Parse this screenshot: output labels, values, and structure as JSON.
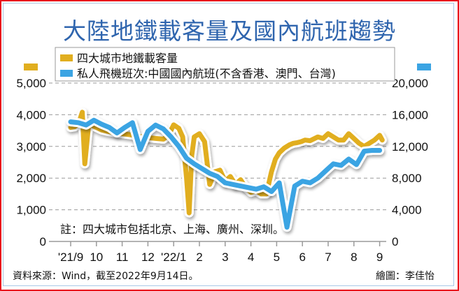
{
  "title": "大陸地鐵載客量及國內航班趨勢",
  "legend": [
    {
      "label": "四大城市地鐵載客量",
      "color": "#e1ae1f"
    },
    {
      "label": "私人飛機班次:中國國內航班(不含香港、澳門、台灣)",
      "color": "#3ba4e3"
    }
  ],
  "note": "註：四大城市包括北京、上海、廣州、深圳。",
  "source": "資料來源：Wind，截至2022年9月14日。",
  "credit": "繪圖：李佳怡",
  "chart_data": {
    "type": "line",
    "title": "大陸地鐵載客量及國內航班趨勢",
    "x_ticks": [
      "'21/9",
      "10",
      "11",
      "12",
      "'22/1",
      "2",
      "3",
      "4",
      "5",
      "6",
      "7",
      "8",
      "9"
    ],
    "left_axis": {
      "ticks": [
        "0",
        "1,000",
        "2,000",
        "3,000",
        "4,000",
        "5,000"
      ],
      "ylim": [
        0,
        5000
      ]
    },
    "right_axis": {
      "ticks": [
        "0",
        "4,000",
        "8,000",
        "12,000",
        "16,000",
        "20,000"
      ],
      "ylim": [
        0,
        20000
      ]
    },
    "grid": "dashed horizontal",
    "series": [
      {
        "name": "四大城市地鐵載客量",
        "axis": "left",
        "color": "#e1ae1f",
        "x": [
          0,
          0.15,
          0.3,
          0.45,
          0.55,
          0.7,
          0.85,
          1,
          1.2,
          1.4,
          1.6,
          1.8,
          2,
          2.2,
          2.4,
          2.6,
          2.8,
          3,
          3.3,
          3.6,
          3.8,
          4,
          4.2,
          4.35,
          4.5,
          4.6,
          4.7,
          4.8,
          5,
          5.2,
          5.4,
          5.6,
          5.8,
          6,
          6.2,
          6.4,
          6.6,
          6.8,
          7,
          7.2,
          7.4,
          7.6,
          7.8,
          7.95,
          8.1,
          8.3,
          8.5,
          8.65,
          8.8,
          8.95,
          9.1,
          9.3,
          9.6,
          9.8,
          10.0,
          10.2,
          10.4,
          10.6,
          10.8,
          11,
          11.2,
          11.4,
          11.6,
          11.8,
          12.0,
          12.1
        ],
        "values": [
          3600,
          3620,
          3700,
          4080,
          2450,
          3700,
          3650,
          3600,
          3520,
          3480,
          3450,
          3420,
          3400,
          3380,
          3360,
          3300,
          3320,
          3280,
          3250,
          3230,
          3350,
          3680,
          3570,
          3300,
          2000,
          900,
          2700,
          3300,
          3400,
          3150,
          1800,
          2200,
          2250,
          1900,
          2050,
          1800,
          1950,
          1700,
          1550,
          1600,
          1500,
          1500,
          2200,
          2600,
          2800,
          2950,
          3050,
          3100,
          3120,
          3150,
          3200,
          3180,
          3300,
          3250,
          3400,
          3300,
          3200,
          3200,
          3400,
          3250,
          3100,
          3000,
          3100,
          3200,
          3350,
          3200
        ]
      },
      {
        "name": "私人飛機班次:中國國內航班",
        "axis": "right",
        "color": "#3ba4e3",
        "x": [
          0,
          0.3,
          0.6,
          0.9,
          1.2,
          1.5,
          1.8,
          2.1,
          2.4,
          2.7,
          3.0,
          3.3,
          3.6,
          3.9,
          4.2,
          4.5,
          4.8,
          5.1,
          5.4,
          5.7,
          6.0,
          6.3,
          6.6,
          6.9,
          7.2,
          7.5,
          7.8,
          8.1,
          8.4,
          8.7,
          9.0,
          9.3,
          9.6,
          9.9,
          10.2,
          10.5,
          10.8,
          11.1,
          11.4,
          11.7,
          12.0
        ],
        "values": [
          15100,
          15000,
          14700,
          15300,
          14800,
          14400,
          13700,
          14400,
          15000,
          11600,
          13900,
          14700,
          14200,
          13200,
          12000,
          10500,
          9800,
          9200,
          8600,
          8200,
          7400,
          7200,
          7000,
          6800,
          6600,
          6900,
          6300,
          7400,
          1800,
          7000,
          7600,
          7400,
          8000,
          8900,
          9800,
          9600,
          10400,
          9700,
          11400,
          11500,
          11500
        ]
      }
    ]
  }
}
